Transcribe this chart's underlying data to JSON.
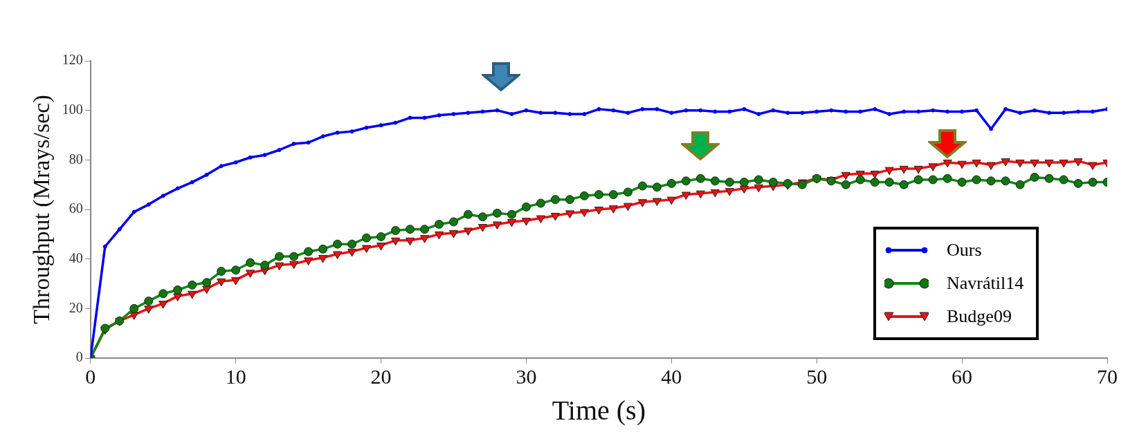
{
  "chart_data": {
    "type": "line",
    "xlabel": "Time (s)",
    "ylabel": "Throughput (Mrays/sec)",
    "x": [
      0,
      1,
      2,
      3,
      4,
      5,
      6,
      7,
      8,
      9,
      10,
      11,
      12,
      13,
      14,
      15,
      16,
      17,
      18,
      19,
      20,
      21,
      22,
      23,
      24,
      25,
      26,
      27,
      28,
      29,
      30,
      31,
      32,
      33,
      34,
      35,
      36,
      37,
      38,
      39,
      40,
      41,
      42,
      43,
      44,
      45,
      46,
      47,
      48,
      49,
      50,
      51,
      52,
      53,
      54,
      55,
      56,
      57,
      58,
      59,
      60,
      61,
      62,
      63,
      64,
      65,
      66,
      67,
      68,
      69,
      70
    ],
    "xlim": [
      0,
      70
    ],
    "xticks": [
      0,
      10,
      20,
      30,
      40,
      50,
      60,
      70
    ],
    "ylim": [
      0,
      120
    ],
    "yticks": [
      0,
      20,
      40,
      60,
      80,
      100,
      120
    ],
    "grid": false,
    "legend": "bottom right",
    "line_style": "solid",
    "series": [
      {
        "name": "Ours",
        "color": "#0000ee",
        "marker": "circle",
        "values": [
          0,
          45,
          52,
          59,
          62,
          65.5,
          68.5,
          71,
          74,
          77.5,
          79,
          81,
          82,
          84,
          86.5,
          87,
          89.5,
          91,
          91.5,
          93,
          94,
          95,
          97,
          97,
          98,
          98.5,
          99,
          99.5,
          100,
          98.5,
          100,
          99,
          99,
          98.5,
          98.5,
          100.5,
          100,
          99,
          100.5,
          100.5,
          99,
          100,
          100,
          99.5,
          99.5,
          100.5,
          98.5,
          100,
          99,
          99,
          99.5,
          100,
          99.5,
          99.5,
          100.5,
          98.5,
          99.5,
          99.5,
          100,
          99.5,
          99.5,
          100,
          92.5,
          100.5,
          99,
          100,
          99,
          99,
          99.5,
          99.5,
          100.5
        ]
      },
      {
        "name": "Navrátil14",
        "color": "#118811",
        "marker": "circle",
        "values": [
          0,
          12,
          15,
          20,
          23,
          26,
          27.5,
          29.5,
          30.5,
          35,
          35.5,
          38.5,
          37.5,
          41,
          41,
          43,
          44,
          46,
          46,
          48.5,
          49,
          51.5,
          52,
          52,
          54,
          55,
          58,
          57,
          58.5,
          58,
          61,
          62.5,
          64,
          64,
          65.5,
          66,
          66,
          67,
          69.5,
          69,
          70.5,
          71.5,
          72.5,
          71.5,
          71,
          71,
          72,
          71,
          70.5,
          70,
          72.5,
          71.5,
          70,
          72,
          71,
          71,
          70,
          72,
          72,
          72.5,
          71,
          72,
          71.5,
          71.5,
          70,
          73,
          72.5,
          72,
          70.5,
          71,
          71
        ]
      },
      {
        "name": "Budge09",
        "color": "#ee1111",
        "marker": "triangle",
        "values": [
          0,
          11.5,
          15,
          17.5,
          20,
          22,
          25,
          26,
          28,
          31,
          31.5,
          34.5,
          35.5,
          37.5,
          38,
          39.5,
          40.5,
          42,
          43,
          44.5,
          45.5,
          47.5,
          47.5,
          48.5,
          50,
          50.5,
          51.5,
          53,
          54,
          55,
          55.5,
          56.5,
          57.5,
          58.5,
          59,
          60,
          60.5,
          61.5,
          63,
          63.5,
          64,
          66,
          66.5,
          67,
          67.5,
          68.5,
          69,
          69.5,
          70,
          71,
          72.5,
          72,
          74,
          74.5,
          74.5,
          76,
          76.5,
          76.5,
          77.5,
          79,
          78.5,
          79,
          78,
          79.5,
          79,
          79,
          79,
          79,
          79.5,
          78,
          79
        ]
      }
    ]
  }
}
